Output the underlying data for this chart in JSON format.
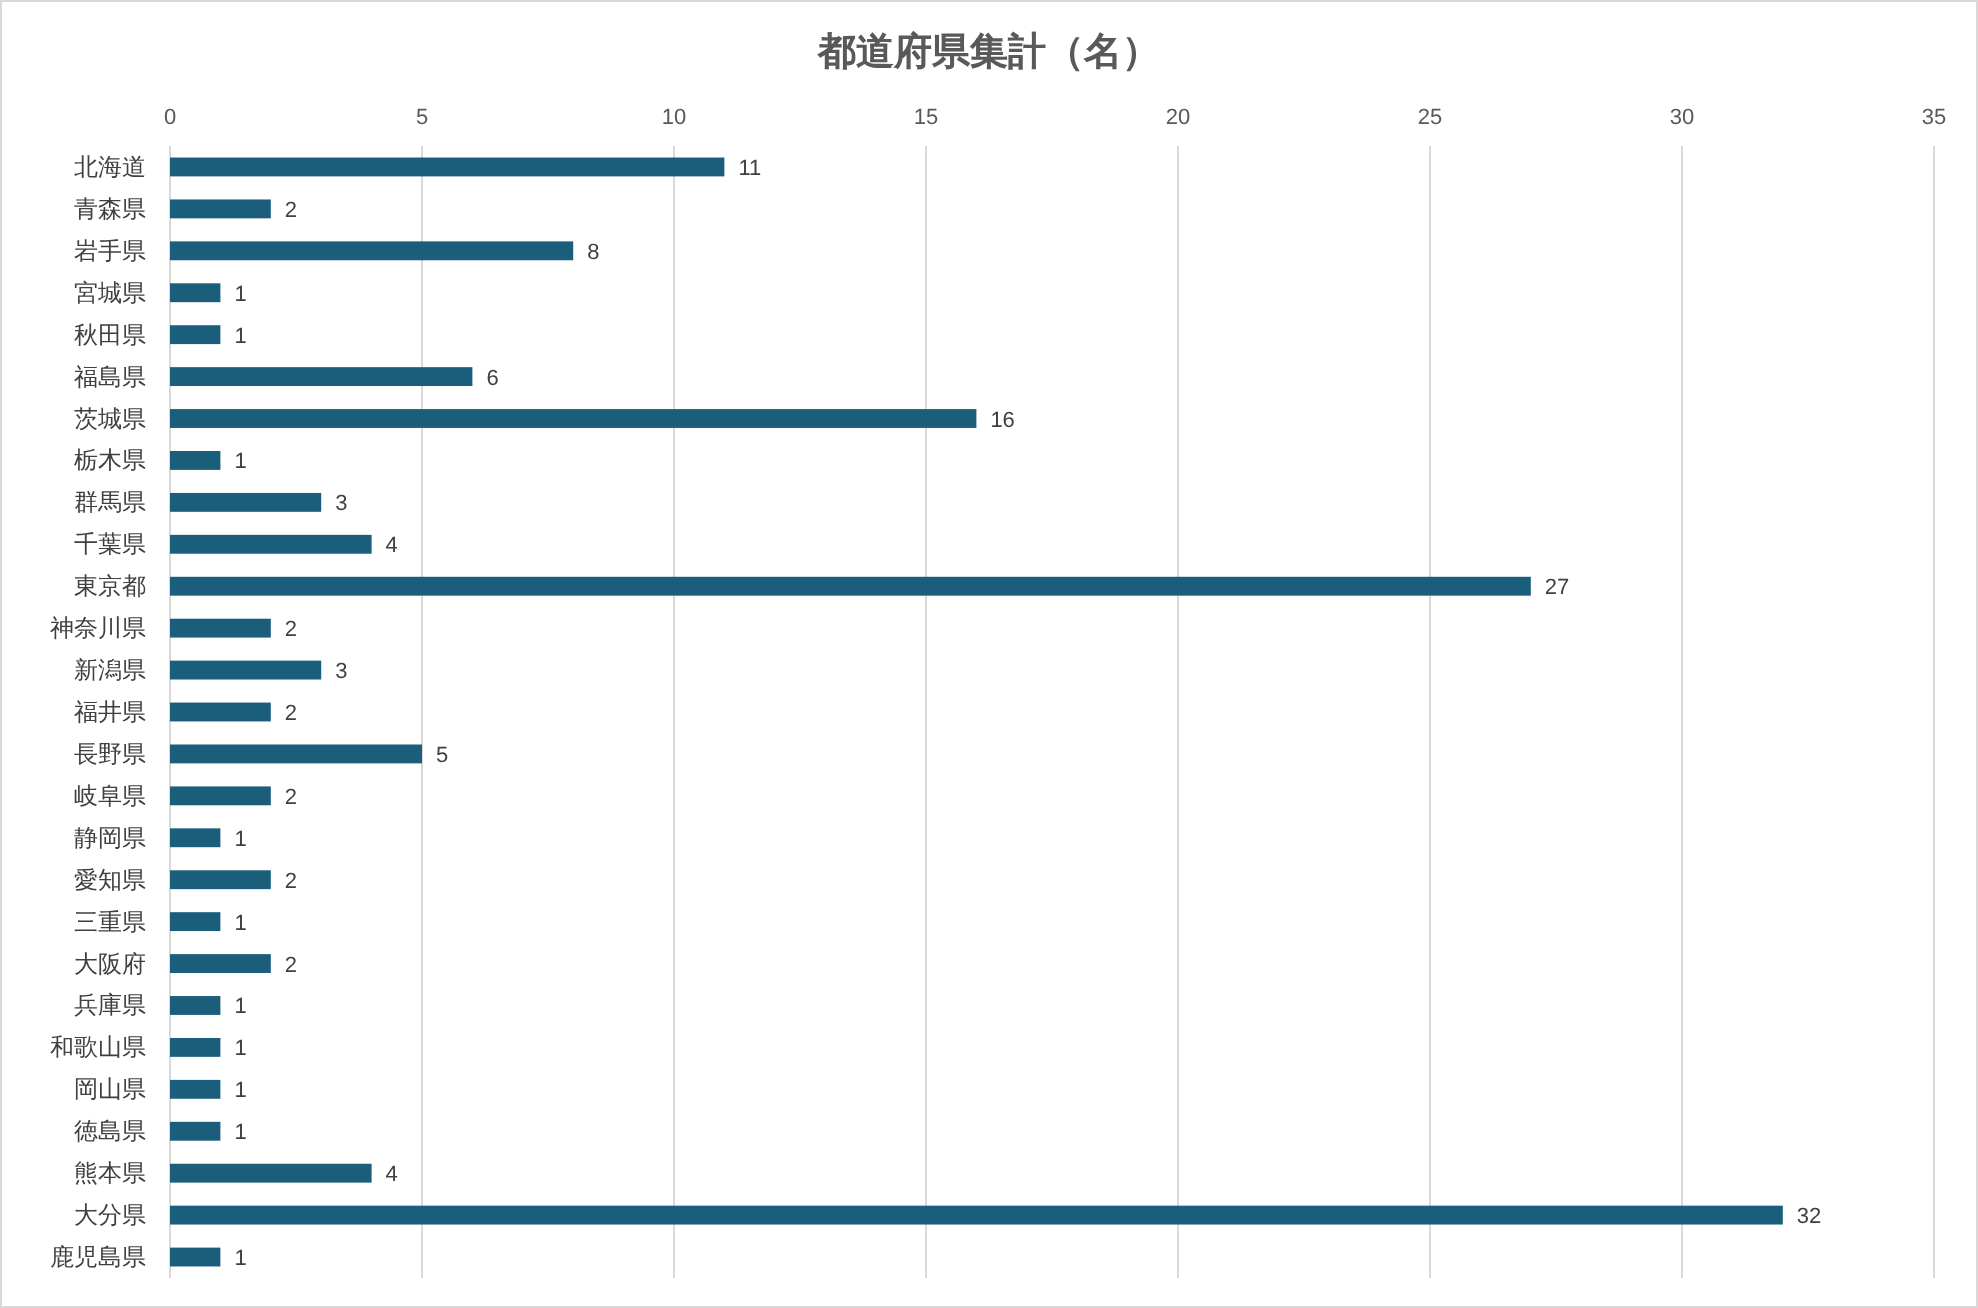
{
  "chart_data": {
    "type": "bar",
    "orientation": "horizontal",
    "title": "都道府県集計（名）",
    "categories": [
      "北海道",
      "青森県",
      "岩手県",
      "宮城県",
      "秋田県",
      "福島県",
      "茨城県",
      "栃木県",
      "群馬県",
      "千葉県",
      "東京都",
      "神奈川県",
      "新潟県",
      "福井県",
      "長野県",
      "岐阜県",
      "静岡県",
      "愛知県",
      "三重県",
      "大阪府",
      "兵庫県",
      "和歌山県",
      "岡山県",
      "徳島県",
      "熊本県",
      "大分県",
      "鹿児島県"
    ],
    "values": [
      11,
      2,
      8,
      1,
      1,
      6,
      16,
      1,
      3,
      4,
      27,
      2,
      3,
      2,
      5,
      2,
      1,
      2,
      1,
      2,
      1,
      1,
      1,
      1,
      4,
      32,
      1
    ],
    "color": "#1b5e7b",
    "xlim": [
      0,
      35
    ],
    "xticks": [
      0,
      5,
      10,
      15,
      20,
      25,
      30,
      35
    ],
    "grid": "x",
    "data_labels": true
  }
}
